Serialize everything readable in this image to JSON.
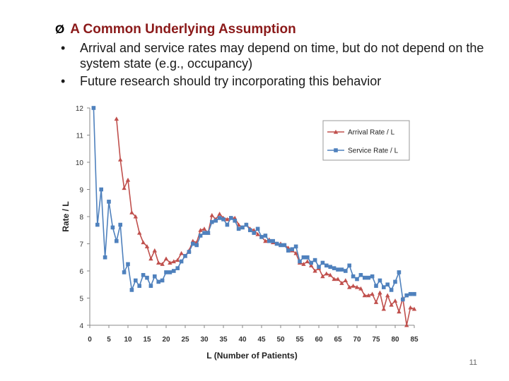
{
  "slide": {
    "heading_marker": "Ø",
    "heading": "A Common Underlying Assumption",
    "bullet_marker": "•",
    "bullets": [
      "Arrival and service rates may depend on time, but do not depend on the system state (e.g., occupancy)",
      "Future research should try incorporating this behavior"
    ],
    "page_number": "11"
  },
  "chart_data": {
    "type": "line",
    "title": "",
    "xlabel": "L (Number of Patients)",
    "ylabel": "Rate / L",
    "xlim": [
      0,
      85
    ],
    "ylim": [
      4,
      12
    ],
    "xticks": [
      0,
      5,
      10,
      15,
      20,
      25,
      30,
      35,
      40,
      45,
      50,
      55,
      60,
      65,
      70,
      75,
      80,
      85
    ],
    "yticks": [
      4,
      5,
      6,
      7,
      8,
      9,
      10,
      11,
      12
    ],
    "legend_position": "top-right",
    "series": [
      {
        "name": "Arrival Rate / L",
        "color": "#c0504d",
        "marker": "triangle",
        "x": [
          7,
          8,
          9,
          10,
          11,
          12,
          13,
          14,
          15,
          16,
          17,
          18,
          19,
          20,
          21,
          22,
          23,
          24,
          25,
          26,
          27,
          28,
          29,
          30,
          31,
          32,
          33,
          34,
          35,
          36,
          37,
          38,
          39,
          40,
          41,
          42,
          43,
          44,
          45,
          46,
          47,
          48,
          49,
          50,
          51,
          52,
          53,
          54,
          55,
          56,
          57,
          58,
          59,
          60,
          61,
          62,
          63,
          64,
          65,
          66,
          67,
          68,
          69,
          70,
          71,
          72,
          73,
          74,
          75,
          76,
          77,
          78,
          79,
          80,
          81,
          82,
          83,
          84,
          85
        ],
        "values": [
          11.6,
          10.1,
          9.05,
          9.35,
          8.15,
          8.0,
          7.4,
          7.05,
          6.9,
          6.45,
          6.75,
          6.3,
          6.25,
          6.45,
          6.3,
          6.35,
          6.4,
          6.65,
          6.55,
          6.75,
          7.1,
          7.05,
          7.5,
          7.55,
          7.4,
          8.05,
          7.9,
          8.1,
          7.95,
          7.9,
          7.95,
          7.95,
          7.7,
          7.6,
          7.7,
          7.55,
          7.5,
          7.35,
          7.25,
          7.1,
          7.15,
          7.05,
          7.0,
          7.0,
          6.95,
          6.85,
          6.75,
          6.65,
          6.3,
          6.25,
          6.35,
          6.2,
          6.0,
          6.1,
          5.8,
          5.9,
          5.85,
          5.7,
          5.7,
          5.55,
          5.65,
          5.4,
          5.45,
          5.4,
          5.35,
          5.1,
          5.1,
          5.15,
          4.85,
          5.2,
          4.6,
          5.1,
          4.75,
          4.9,
          4.5,
          5.0,
          4.0,
          4.65,
          4.6
        ]
      },
      {
        "name": "Service Rate / L",
        "color": "#4f81bd",
        "marker": "square",
        "x": [
          1,
          2,
          3,
          4,
          5,
          6,
          7,
          8,
          9,
          10,
          11,
          12,
          13,
          14,
          15,
          16,
          17,
          18,
          19,
          20,
          21,
          22,
          23,
          24,
          25,
          26,
          27,
          28,
          29,
          30,
          31,
          32,
          33,
          34,
          35,
          36,
          37,
          38,
          39,
          40,
          41,
          42,
          43,
          44,
          45,
          46,
          47,
          48,
          49,
          50,
          51,
          52,
          53,
          54,
          55,
          56,
          57,
          58,
          59,
          60,
          61,
          62,
          63,
          64,
          65,
          66,
          67,
          68,
          69,
          70,
          71,
          72,
          73,
          74,
          75,
          76,
          77,
          78,
          79,
          80,
          81,
          82,
          83,
          84,
          85
        ],
        "values": [
          12.0,
          7.7,
          9.0,
          6.5,
          8.55,
          7.6,
          7.1,
          7.7,
          5.95,
          6.25,
          5.3,
          5.65,
          5.45,
          5.85,
          5.75,
          5.45,
          5.8,
          5.6,
          5.65,
          5.95,
          5.95,
          6.0,
          6.1,
          6.35,
          6.55,
          6.7,
          7.0,
          6.95,
          7.3,
          7.4,
          7.4,
          7.8,
          7.85,
          7.95,
          7.9,
          7.7,
          7.95,
          7.85,
          7.55,
          7.6,
          7.7,
          7.5,
          7.4,
          7.55,
          7.25,
          7.3,
          7.1,
          7.1,
          7.0,
          6.95,
          6.95,
          6.75,
          6.8,
          6.9,
          6.35,
          6.5,
          6.5,
          6.3,
          6.4,
          6.15,
          6.3,
          6.2,
          6.15,
          6.1,
          6.05,
          6.05,
          6.0,
          6.2,
          5.8,
          5.7,
          5.85,
          5.75,
          5.75,
          5.8,
          5.45,
          5.65,
          5.4,
          5.5,
          5.3,
          5.6,
          5.95,
          4.95,
          5.1,
          5.15,
          5.15
        ]
      }
    ]
  }
}
